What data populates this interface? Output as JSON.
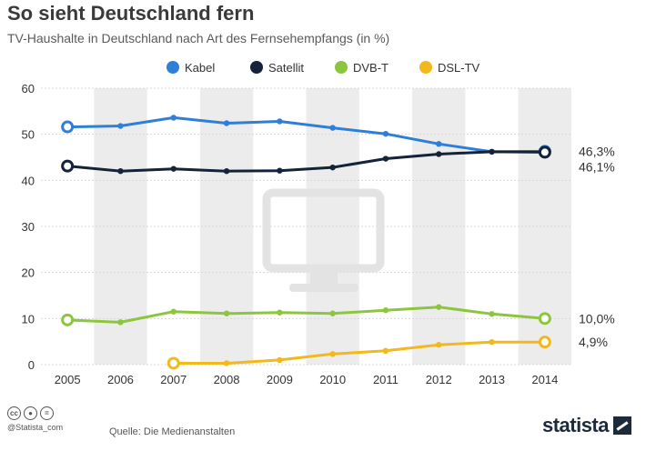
{
  "header": {
    "title": "So sieht Deutschland fern",
    "subtitle": "TV-Haushalte in Deutschland nach Art des Fernsehempfangs (in %)"
  },
  "footer": {
    "copyright": "@Statista_com",
    "source": "Quelle: Die Medienanstalten",
    "brand": "statista",
    "license_icons": [
      "cc-icon",
      "by-icon",
      "nd-icon"
    ]
  },
  "colors": {
    "Kabel": "#2f7ed8",
    "Satellit": "#132338",
    "DVB-T": "#8cc63e",
    "DSL-TV": "#f2b81c",
    "band": "#ececec",
    "grid": "#d8d8d8",
    "tv_icon": "#e3e3e3"
  },
  "chart_data": {
    "type": "line",
    "x": [
      "2005",
      "2006",
      "2007",
      "2008",
      "2009",
      "2010",
      "2011",
      "2012",
      "2013",
      "2014"
    ],
    "ylim": [
      0,
      60
    ],
    "yticks": [
      "0",
      "10",
      "20",
      "30",
      "40",
      "50",
      "60"
    ],
    "grid": true,
    "legend": "top",
    "decoration": "tv-icon",
    "series": [
      {
        "name": "Kabel",
        "values": [
          51.6,
          51.8,
          53.6,
          52.4,
          52.8,
          51.4,
          50.1,
          47.9,
          46.2,
          46.3
        ],
        "end_label": "46,3%"
      },
      {
        "name": "Satellit",
        "values": [
          43.1,
          42.0,
          42.5,
          42.0,
          42.1,
          42.8,
          44.7,
          45.7,
          46.2,
          46.1
        ],
        "end_label": "46,1%"
      },
      {
        "name": "DVB-T",
        "values": [
          9.7,
          9.2,
          11.5,
          11.1,
          11.3,
          11.1,
          11.8,
          12.5,
          11.0,
          10.0
        ],
        "end_label": "10,0%"
      },
      {
        "name": "DSL-TV",
        "values": [
          null,
          null,
          0.3,
          0.3,
          1.0,
          2.3,
          3.0,
          4.3,
          4.9,
          4.9
        ],
        "end_label": "4,9%"
      }
    ]
  }
}
